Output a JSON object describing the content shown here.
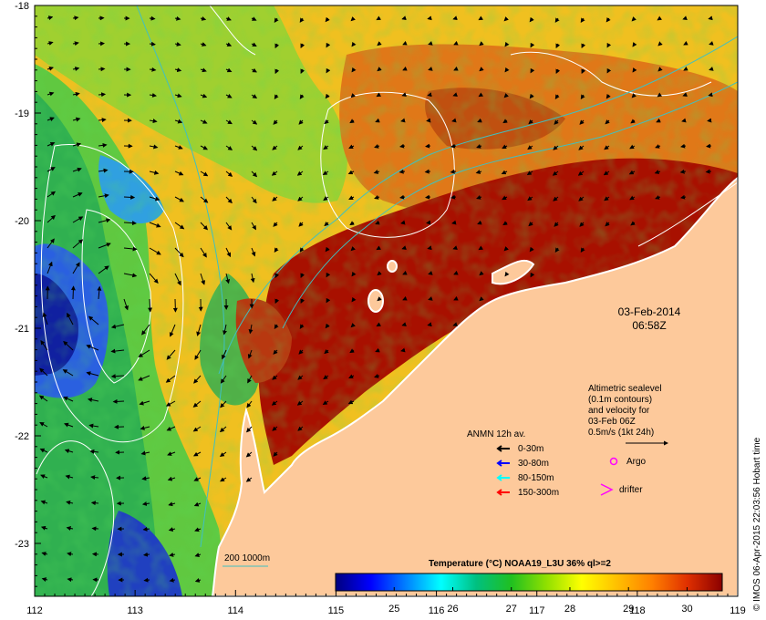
{
  "map": {
    "lon_ticks": [
      "112",
      "113",
      "114",
      "115",
      "116",
      "117",
      "118",
      "119"
    ],
    "lat_ticks": [
      "-18",
      "-19",
      "-20",
      "-21",
      "-22",
      "-23"
    ],
    "colors": {
      "land": "#fdc99b",
      "coast": "#ffffff",
      "contour": "#ffffff",
      "isobath": "#40c0c0",
      "vector": "#000000"
    }
  },
  "date_stamp": {
    "date": "03-Feb-2014",
    "time": "06:58Z"
  },
  "altimetry_note": {
    "lines": [
      "Altimetric sealevel",
      "(0.1m contours)",
      "and velocity for",
      "03-Feb 06Z",
      "0.5m/s (1kt 24h)"
    ]
  },
  "anmn_legend": {
    "title": "ANMN 12h av.",
    "items": [
      {
        "label": "0-30m",
        "color": "#000000"
      },
      {
        "label": "30-80m",
        "color": "#0000ff"
      },
      {
        "label": "80-150m",
        "color": "#00ffff"
      },
      {
        "label": "150-300m",
        "color": "#ff0000"
      }
    ]
  },
  "markers_legend": {
    "argo": {
      "label": "Argo",
      "color": "#ff00ff"
    },
    "drifter": {
      "label": "drifter",
      "color": "#ff00ff"
    }
  },
  "isobath_legend": {
    "label": "200  1000m"
  },
  "colorbar": {
    "title": "Temperature (°C) NOAA19_L3U 36% ql>=2",
    "ticks": [
      "25",
      "26",
      "27",
      "28",
      "29",
      "30"
    ],
    "stops": [
      "#00007f",
      "#0000ff",
      "#0080ff",
      "#00ffff",
      "#00c080",
      "#20c020",
      "#90e000",
      "#ffff00",
      "#ffc000",
      "#ff8000",
      "#e03000",
      "#8b0000"
    ]
  },
  "credit": "© IMOS 06-Apr-2015 22:03:56 Hobart time"
}
